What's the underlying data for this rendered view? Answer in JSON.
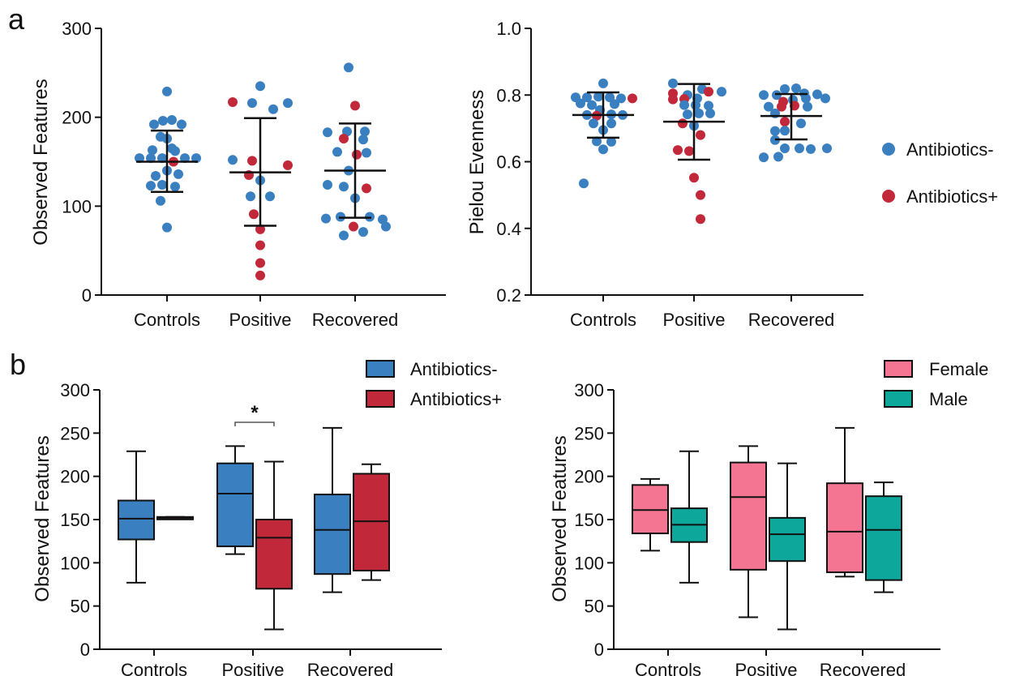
{
  "colors": {
    "antibiotics_minus": "#3a7fc0",
    "antibiotics_plus": "#c1283a",
    "female": "#f47592",
    "male": "#0ea79b"
  },
  "panels": {
    "a": "a",
    "b": "b"
  },
  "legend_a": {
    "items": [
      "Antibiotics-",
      "Antibiotics+"
    ]
  },
  "chart_data": [
    {
      "type": "scatter",
      "panel": "a",
      "ylabel": "Observed Features",
      "ylim": [
        0,
        300
      ],
      "yticks": [
        0,
        100,
        200,
        300
      ],
      "categories": [
        "Controls",
        "Positive",
        "Recovered"
      ],
      "summary": [
        {
          "mean": 150,
          "sd_low": 116,
          "sd_high": 185
        },
        {
          "mean": 138,
          "sd_low": 78,
          "sd_high": 199
        },
        {
          "mean": 140,
          "sd_low": 87,
          "sd_high": 193
        }
      ],
      "points": [
        {
          "c": 0,
          "dx": 0,
          "y": 229,
          "g": "minus"
        },
        {
          "c": 0,
          "dx": -5,
          "y": 196,
          "g": "minus"
        },
        {
          "c": 0,
          "dx": 6,
          "y": 197,
          "g": "minus"
        },
        {
          "c": 0,
          "dx": -16,
          "y": 192,
          "g": "minus"
        },
        {
          "c": 0,
          "dx": 18,
          "y": 192,
          "g": "minus"
        },
        {
          "c": 0,
          "dx": -8,
          "y": 178,
          "g": "minus"
        },
        {
          "c": 0,
          "dx": 0,
          "y": 176,
          "g": "minus"
        },
        {
          "c": 0,
          "dx": 6,
          "y": 165,
          "g": "minus"
        },
        {
          "c": 0,
          "dx": -18,
          "y": 163,
          "g": "minus"
        },
        {
          "c": 0,
          "dx": 10,
          "y": 162,
          "g": "minus"
        },
        {
          "c": 0,
          "dx": -34,
          "y": 154,
          "g": "minus"
        },
        {
          "c": 0,
          "dx": -20,
          "y": 154,
          "g": "minus"
        },
        {
          "c": 0,
          "dx": -6,
          "y": 154,
          "g": "minus"
        },
        {
          "c": 0,
          "dx": 8,
          "y": 150,
          "g": "plus"
        },
        {
          "c": 0,
          "dx": 22,
          "y": 154,
          "g": "minus"
        },
        {
          "c": 0,
          "dx": 36,
          "y": 154,
          "g": "minus"
        },
        {
          "c": 0,
          "dx": 0,
          "y": 140,
          "g": "minus"
        },
        {
          "c": 0,
          "dx": -14,
          "y": 134,
          "g": "minus"
        },
        {
          "c": 0,
          "dx": 14,
          "y": 136,
          "g": "minus"
        },
        {
          "c": 0,
          "dx": -20,
          "y": 123,
          "g": "minus"
        },
        {
          "c": 0,
          "dx": -6,
          "y": 124,
          "g": "minus"
        },
        {
          "c": 0,
          "dx": 10,
          "y": 122,
          "g": "minus"
        },
        {
          "c": 0,
          "dx": -8,
          "y": 106,
          "g": "minus"
        },
        {
          "c": 0,
          "dx": 0,
          "y": 76,
          "g": "minus"
        },
        {
          "c": 1,
          "dx": 0,
          "y": 235,
          "g": "minus"
        },
        {
          "c": 1,
          "dx": -34,
          "y": 217,
          "g": "plus"
        },
        {
          "c": 1,
          "dx": -10,
          "y": 216,
          "g": "minus"
        },
        {
          "c": 1,
          "dx": 16,
          "y": 209,
          "g": "minus"
        },
        {
          "c": 1,
          "dx": 34,
          "y": 216,
          "g": "minus"
        },
        {
          "c": 1,
          "dx": -34,
          "y": 152,
          "g": "minus"
        },
        {
          "c": 1,
          "dx": -10,
          "y": 151,
          "g": "plus"
        },
        {
          "c": 1,
          "dx": 34,
          "y": 146,
          "g": "plus"
        },
        {
          "c": 1,
          "dx": -14,
          "y": 135,
          "g": "plus"
        },
        {
          "c": 1,
          "dx": 0,
          "y": 129,
          "g": "minus"
        },
        {
          "c": 1,
          "dx": -12,
          "y": 111,
          "g": "minus"
        },
        {
          "c": 1,
          "dx": 12,
          "y": 111,
          "g": "minus"
        },
        {
          "c": 1,
          "dx": -8,
          "y": 91,
          "g": "plus"
        },
        {
          "c": 1,
          "dx": 0,
          "y": 74,
          "g": "plus"
        },
        {
          "c": 1,
          "dx": 0,
          "y": 56,
          "g": "plus"
        },
        {
          "c": 1,
          "dx": 0,
          "y": 36,
          "g": "plus"
        },
        {
          "c": 1,
          "dx": 0,
          "y": 22,
          "g": "plus"
        },
        {
          "c": 2,
          "dx": -8,
          "y": 256,
          "g": "minus"
        },
        {
          "c": 2,
          "dx": 0,
          "y": 213,
          "g": "plus"
        },
        {
          "c": 2,
          "dx": -34,
          "y": 183,
          "g": "minus"
        },
        {
          "c": 2,
          "dx": -10,
          "y": 184,
          "g": "minus"
        },
        {
          "c": 2,
          "dx": 12,
          "y": 184,
          "g": "minus"
        },
        {
          "c": 2,
          "dx": -14,
          "y": 176,
          "g": "plus"
        },
        {
          "c": 2,
          "dx": 10,
          "y": 175,
          "g": "minus"
        },
        {
          "c": 2,
          "dx": -22,
          "y": 161,
          "g": "minus"
        },
        {
          "c": 2,
          "dx": 2,
          "y": 158,
          "g": "plus"
        },
        {
          "c": 2,
          "dx": 14,
          "y": 160,
          "g": "minus"
        },
        {
          "c": 2,
          "dx": -8,
          "y": 140,
          "g": "minus"
        },
        {
          "c": 2,
          "dx": -34,
          "y": 124,
          "g": "minus"
        },
        {
          "c": 2,
          "dx": -14,
          "y": 122,
          "g": "minus"
        },
        {
          "c": 2,
          "dx": 14,
          "y": 120,
          "g": "plus"
        },
        {
          "c": 2,
          "dx": 0,
          "y": 109,
          "g": "minus"
        },
        {
          "c": 2,
          "dx": -36,
          "y": 86,
          "g": "minus"
        },
        {
          "c": 2,
          "dx": -18,
          "y": 88,
          "g": "minus"
        },
        {
          "c": 2,
          "dx": -2,
          "y": 77,
          "g": "plus"
        },
        {
          "c": 2,
          "dx": 18,
          "y": 88,
          "g": "minus"
        },
        {
          "c": 2,
          "dx": 34,
          "y": 85,
          "g": "minus"
        },
        {
          "c": 2,
          "dx": 38,
          "y": 77,
          "g": "minus"
        },
        {
          "c": 2,
          "dx": -14,
          "y": 67,
          "g": "minus"
        },
        {
          "c": 2,
          "dx": 10,
          "y": 71,
          "g": "minus"
        }
      ]
    },
    {
      "type": "scatter",
      "panel": "a",
      "ylabel": "Pielou Evenness",
      "ylim": [
        0.2,
        1.0
      ],
      "yticks": [
        "0.2",
        "0.4",
        "0.6",
        "0.8",
        "1.0"
      ],
      "categories": [
        "Controls",
        "Positive",
        "Recovered"
      ],
      "summary": [
        {
          "mean": 0.74,
          "sd_low": 0.672,
          "sd_high": 0.808
        },
        {
          "mean": 0.72,
          "sd_low": 0.606,
          "sd_high": 0.833
        },
        {
          "mean": 0.737,
          "sd_low": 0.667,
          "sd_high": 0.803
        }
      ],
      "points": [
        {
          "c": 0,
          "dx": 0,
          "y": 0.835,
          "g": "minus"
        },
        {
          "c": 0,
          "dx": -34,
          "y": 0.793,
          "g": "minus"
        },
        {
          "c": 0,
          "dx": -20,
          "y": 0.793,
          "g": "minus"
        },
        {
          "c": 0,
          "dx": -6,
          "y": 0.795,
          "g": "minus"
        },
        {
          "c": 0,
          "dx": 8,
          "y": 0.793,
          "g": "minus"
        },
        {
          "c": 0,
          "dx": 22,
          "y": 0.79,
          "g": "minus"
        },
        {
          "c": 0,
          "dx": 36,
          "y": 0.79,
          "g": "plus"
        },
        {
          "c": 0,
          "dx": -28,
          "y": 0.775,
          "g": "minus"
        },
        {
          "c": 0,
          "dx": -14,
          "y": 0.77,
          "g": "minus"
        },
        {
          "c": 0,
          "dx": 14,
          "y": 0.773,
          "g": "minus"
        },
        {
          "c": 0,
          "dx": -4,
          "y": 0.755,
          "g": "minus"
        },
        {
          "c": 0,
          "dx": -20,
          "y": 0.74,
          "g": "minus"
        },
        {
          "c": 0,
          "dx": -8,
          "y": 0.738,
          "g": "plus"
        },
        {
          "c": 0,
          "dx": 10,
          "y": 0.742,
          "g": "minus"
        },
        {
          "c": 0,
          "dx": 24,
          "y": 0.74,
          "g": "minus"
        },
        {
          "c": 0,
          "dx": -12,
          "y": 0.715,
          "g": "minus"
        },
        {
          "c": 0,
          "dx": 10,
          "y": 0.715,
          "g": "minus"
        },
        {
          "c": 0,
          "dx": 0,
          "y": 0.695,
          "g": "minus"
        },
        {
          "c": 0,
          "dx": -8,
          "y": 0.661,
          "g": "minus"
        },
        {
          "c": 0,
          "dx": 10,
          "y": 0.66,
          "g": "minus"
        },
        {
          "c": 0,
          "dx": 0,
          "y": 0.637,
          "g": "minus"
        },
        {
          "c": 0,
          "dx": -24,
          "y": 0.535,
          "g": "minus"
        },
        {
          "c": 1,
          "dx": -26,
          "y": 0.835,
          "g": "minus"
        },
        {
          "c": 1,
          "dx": 10,
          "y": 0.818,
          "g": "minus"
        },
        {
          "c": 1,
          "dx": -26,
          "y": 0.805,
          "g": "plus"
        },
        {
          "c": 1,
          "dx": 18,
          "y": 0.81,
          "g": "plus"
        },
        {
          "c": 1,
          "dx": 34,
          "y": 0.81,
          "g": "minus"
        },
        {
          "c": 1,
          "dx": -8,
          "y": 0.8,
          "g": "minus"
        },
        {
          "c": 1,
          "dx": -26,
          "y": 0.787,
          "g": "plus"
        },
        {
          "c": 1,
          "dx": -12,
          "y": 0.788,
          "g": "plus"
        },
        {
          "c": 1,
          "dx": 4,
          "y": 0.79,
          "g": "minus"
        },
        {
          "c": 1,
          "dx": -12,
          "y": 0.77,
          "g": "minus"
        },
        {
          "c": 1,
          "dx": 2,
          "y": 0.77,
          "g": "minus"
        },
        {
          "c": 1,
          "dx": 18,
          "y": 0.768,
          "g": "minus"
        },
        {
          "c": 1,
          "dx": -8,
          "y": 0.742,
          "g": "minus"
        },
        {
          "c": 1,
          "dx": 6,
          "y": 0.745,
          "g": "minus"
        },
        {
          "c": 1,
          "dx": 20,
          "y": 0.745,
          "g": "minus"
        },
        {
          "c": 1,
          "dx": -14,
          "y": 0.715,
          "g": "plus"
        },
        {
          "c": 1,
          "dx": 0,
          "y": 0.708,
          "g": "minus"
        },
        {
          "c": 1,
          "dx": 8,
          "y": 0.68,
          "g": "plus"
        },
        {
          "c": 1,
          "dx": -20,
          "y": 0.635,
          "g": "plus"
        },
        {
          "c": 1,
          "dx": -6,
          "y": 0.632,
          "g": "plus"
        },
        {
          "c": 1,
          "dx": 0,
          "y": 0.552,
          "g": "plus"
        },
        {
          "c": 1,
          "dx": 8,
          "y": 0.5,
          "g": "plus"
        },
        {
          "c": 1,
          "dx": 8,
          "y": 0.428,
          "g": "plus"
        },
        {
          "c": 2,
          "dx": -8,
          "y": 0.818,
          "g": "minus"
        },
        {
          "c": 2,
          "dx": 6,
          "y": 0.82,
          "g": "minus"
        },
        {
          "c": 2,
          "dx": -34,
          "y": 0.8,
          "g": "minus"
        },
        {
          "c": 2,
          "dx": -18,
          "y": 0.8,
          "g": "minus"
        },
        {
          "c": 2,
          "dx": 16,
          "y": 0.805,
          "g": "minus"
        },
        {
          "c": 2,
          "dx": 32,
          "y": 0.802,
          "g": "minus"
        },
        {
          "c": 2,
          "dx": -10,
          "y": 0.78,
          "g": "plus"
        },
        {
          "c": 2,
          "dx": 2,
          "y": 0.785,
          "g": "minus"
        },
        {
          "c": 2,
          "dx": 18,
          "y": 0.79,
          "g": "minus"
        },
        {
          "c": 2,
          "dx": 42,
          "y": 0.79,
          "g": "minus"
        },
        {
          "c": 2,
          "dx": -28,
          "y": 0.765,
          "g": "minus"
        },
        {
          "c": 2,
          "dx": -12,
          "y": 0.765,
          "g": "plus"
        },
        {
          "c": 2,
          "dx": 4,
          "y": 0.768,
          "g": "plus"
        },
        {
          "c": 2,
          "dx": 20,
          "y": 0.765,
          "g": "minus"
        },
        {
          "c": 2,
          "dx": -20,
          "y": 0.745,
          "g": "minus"
        },
        {
          "c": 2,
          "dx": -8,
          "y": 0.72,
          "g": "plus"
        },
        {
          "c": 2,
          "dx": 12,
          "y": 0.715,
          "g": "minus"
        },
        {
          "c": 2,
          "dx": -20,
          "y": 0.692,
          "g": "minus"
        },
        {
          "c": 2,
          "dx": -8,
          "y": 0.693,
          "g": "minus"
        },
        {
          "c": 2,
          "dx": -20,
          "y": 0.665,
          "g": "minus"
        },
        {
          "c": 2,
          "dx": -8,
          "y": 0.64,
          "g": "minus"
        },
        {
          "c": 2,
          "dx": 10,
          "y": 0.64,
          "g": "minus"
        },
        {
          "c": 2,
          "dx": 24,
          "y": 0.638,
          "g": "minus"
        },
        {
          "c": 2,
          "dx": 44,
          "y": 0.64,
          "g": "minus"
        },
        {
          "c": 2,
          "dx": -34,
          "y": 0.613,
          "g": "minus"
        },
        {
          "c": 2,
          "dx": -16,
          "y": 0.615,
          "g": "minus"
        }
      ]
    },
    {
      "type": "box",
      "panel": "b",
      "ylabel": "Observed Features",
      "ylim": [
        0,
        300
      ],
      "yticks": [
        0,
        50,
        100,
        150,
        200,
        250,
        300
      ],
      "categories": [
        "Controls",
        "Positive",
        "Recovered"
      ],
      "legend": [
        "Antibiotics-",
        "Antibiotics+"
      ],
      "significance": {
        "category": "Positive",
        "label": "*"
      },
      "series": [
        {
          "name": "Antibiotics-",
          "color_key": "antibiotics_minus",
          "boxes": [
            {
              "min": 77,
              "q1": 127,
              "median": 151,
              "q3": 172,
              "max": 229
            },
            {
              "min": 110,
              "q1": 119,
              "median": 180,
              "q3": 215,
              "max": 235
            },
            {
              "min": 66,
              "q1": 87,
              "median": 138,
              "q3": 179,
              "max": 256
            }
          ]
        },
        {
          "name": "Antibiotics+",
          "color_key": "antibiotics_plus",
          "boxes": [
            {
              "min": 152,
              "q1": 152,
              "median": 152,
              "q3": 153,
              "max": 153
            },
            {
              "min": 23,
              "q1": 70,
              "median": 129,
              "q3": 150,
              "max": 217
            },
            {
              "min": 80,
              "q1": 91,
              "median": 148,
              "q3": 203,
              "max": 214
            }
          ]
        }
      ]
    },
    {
      "type": "box",
      "panel": "b",
      "ylabel": "Observed Features",
      "ylim": [
        0,
        300
      ],
      "yticks": [
        0,
        50,
        100,
        150,
        200,
        250,
        300
      ],
      "categories": [
        "Controls",
        "Positive",
        "Recovered"
      ],
      "legend": [
        "Female",
        "Male"
      ],
      "series": [
        {
          "name": "Female",
          "color_key": "female",
          "boxes": [
            {
              "min": 114,
              "q1": 134,
              "median": 161,
              "q3": 190,
              "max": 197
            },
            {
              "min": 37,
              "q1": 92,
              "median": 176,
              "q3": 216,
              "max": 235
            },
            {
              "min": 84,
              "q1": 89,
              "median": 136,
              "q3": 192,
              "max": 256
            }
          ]
        },
        {
          "name": "Male",
          "color_key": "male",
          "boxes": [
            {
              "min": 77,
              "q1": 124,
              "median": 144,
              "q3": 163,
              "max": 229
            },
            {
              "min": 23,
              "q1": 102,
              "median": 133,
              "q3": 152,
              "max": 215
            },
            {
              "min": 66,
              "q1": 80,
              "median": 138,
              "q3": 177,
              "max": 193
            }
          ]
        }
      ]
    }
  ]
}
